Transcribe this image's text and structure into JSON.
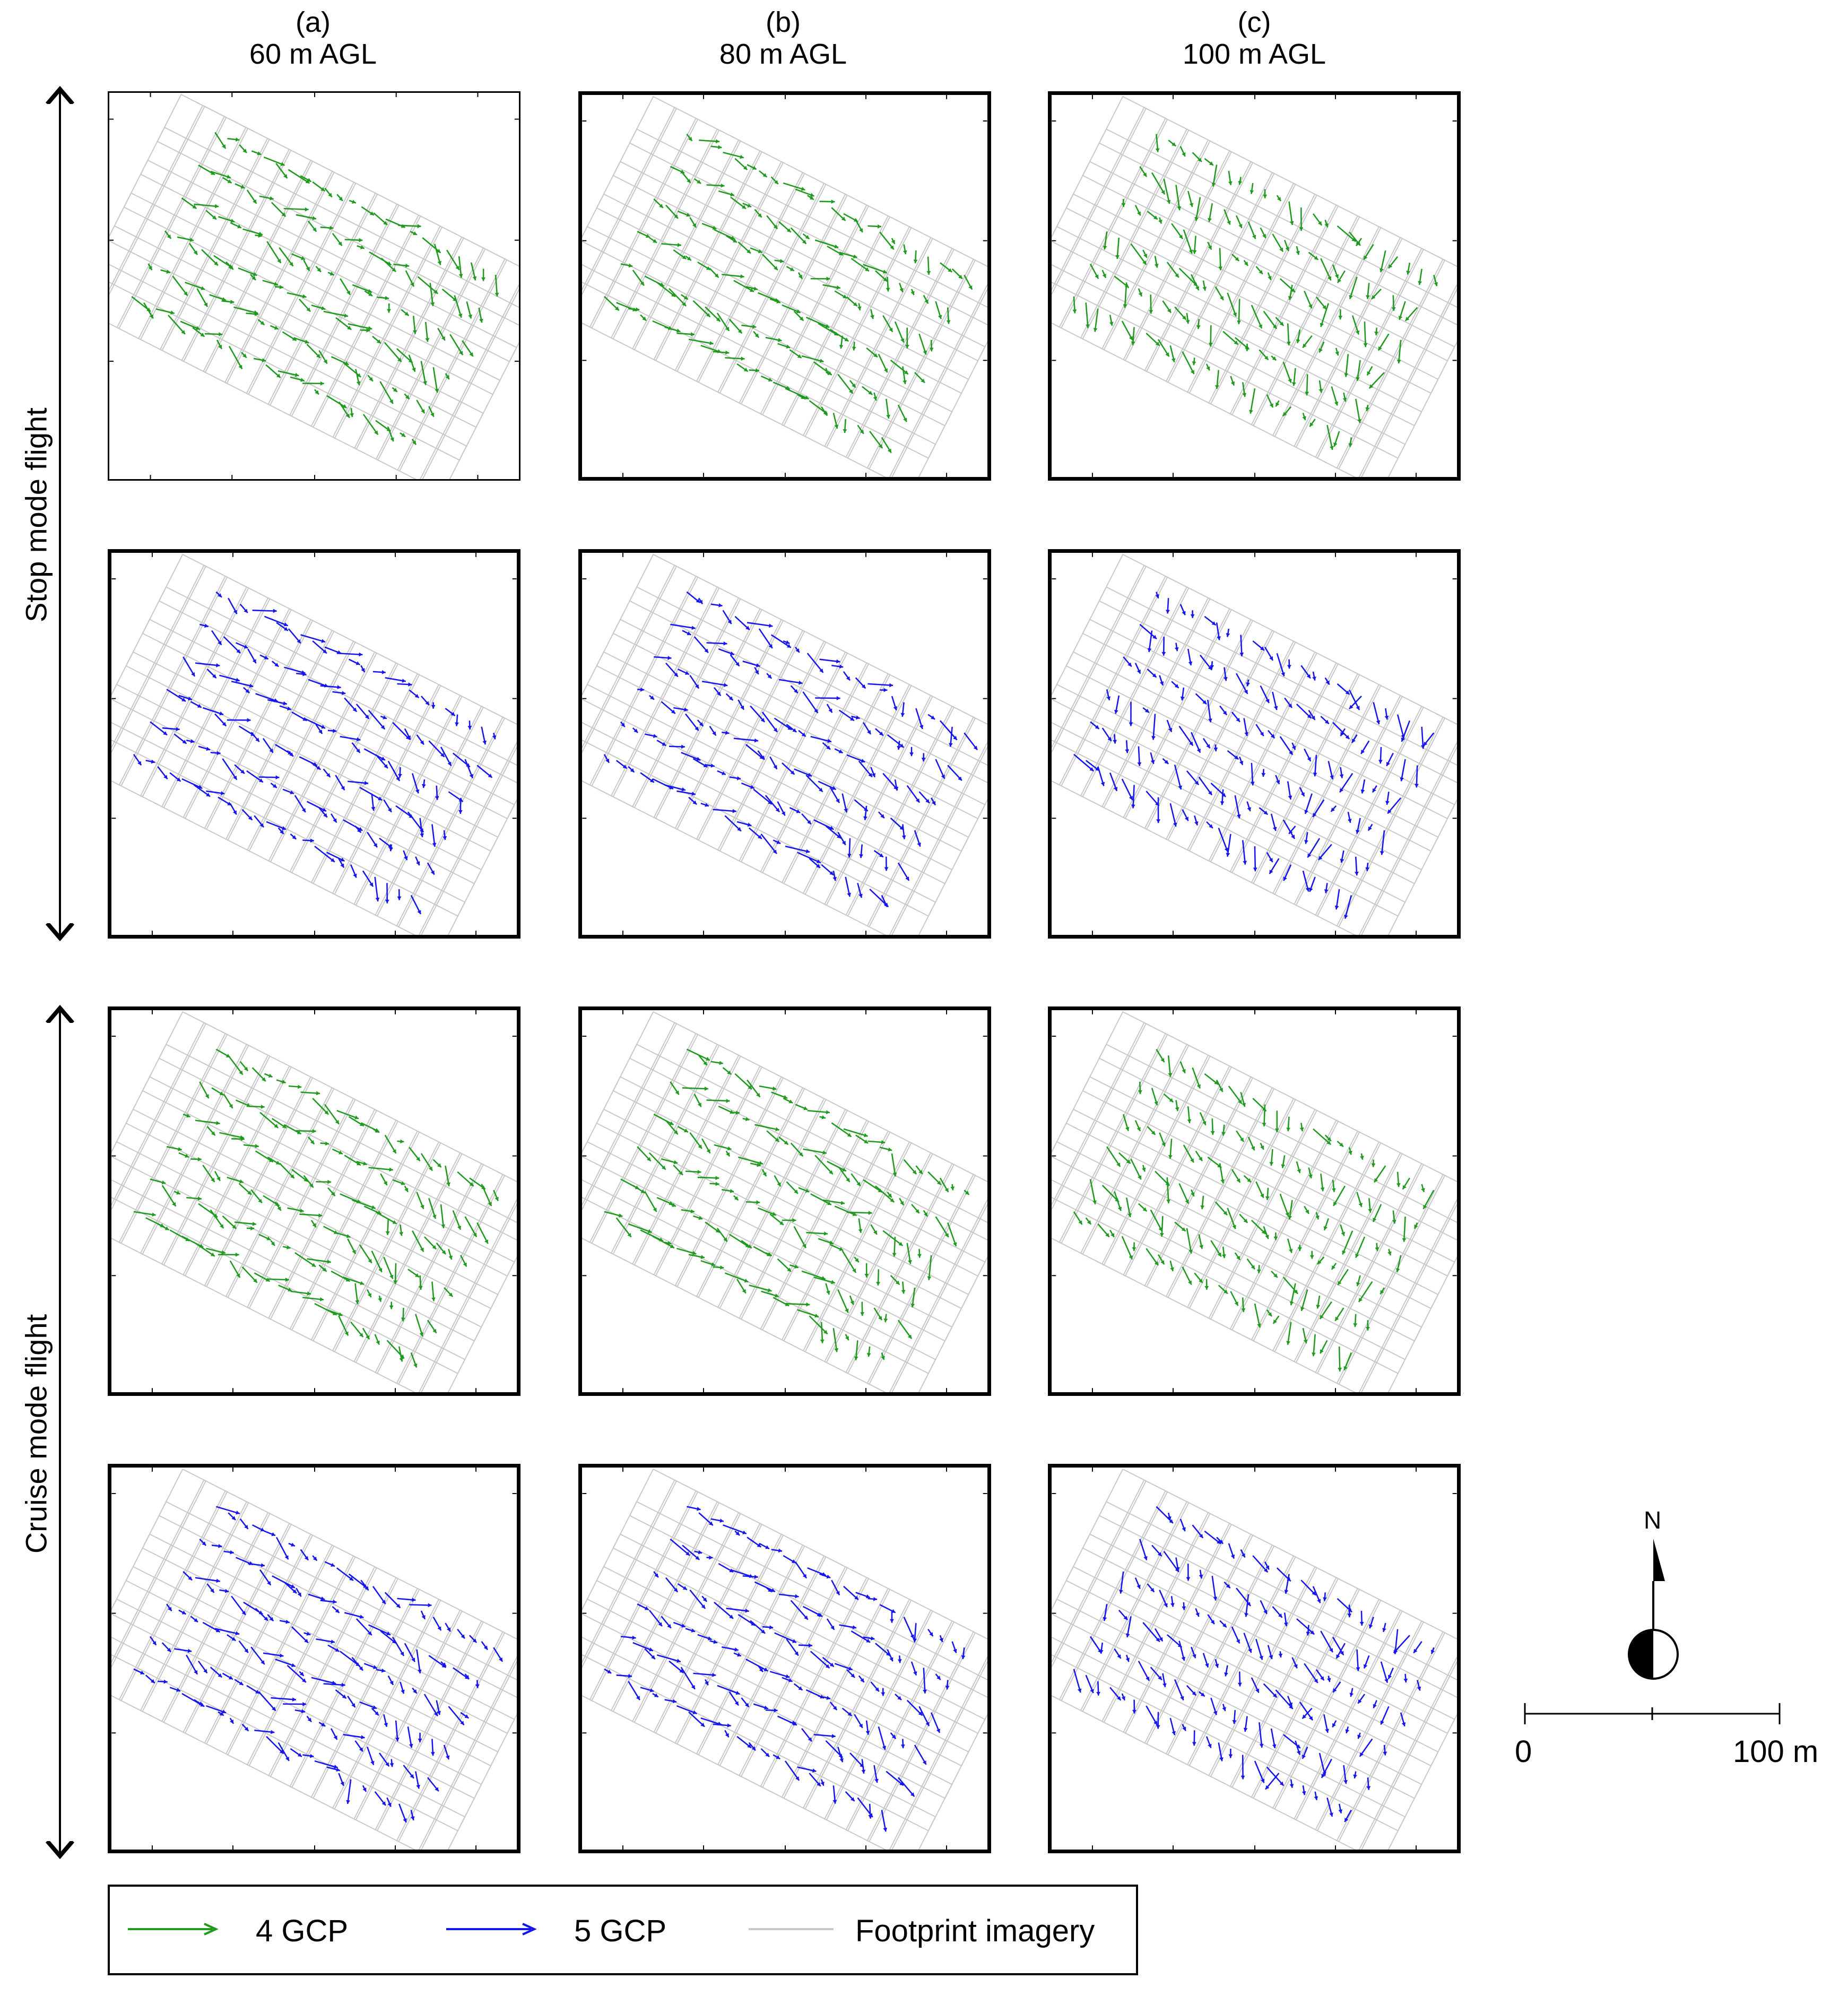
{
  "columns": [
    {
      "letter": "(a)",
      "height": "60 m AGL"
    },
    {
      "letter": "(b)",
      "height": "80 m AGL"
    },
    {
      "letter": "(c)",
      "height": "100 m AGL"
    }
  ],
  "row_groups": [
    {
      "label": "Stop mode flight"
    },
    {
      "label": "Cruise mode flight"
    }
  ],
  "legend": {
    "gcp4": "4 GCP",
    "gcp5": "5 GCP",
    "footprint": "Footprint imagery"
  },
  "colors": {
    "gcp4": "#1f9a1f",
    "gcp5": "#1515f0",
    "footprint": "#c8c8c8"
  },
  "north_arrow": {
    "label": "N"
  },
  "scale_bar": {
    "start_label": "0",
    "end_label": "100 m"
  },
  "chart_data": [
    {
      "type": "quiver",
      "row": "Stop mode flight",
      "series": "4 GCP",
      "column": "60 m AGL"
    },
    {
      "type": "quiver",
      "row": "Stop mode flight",
      "series": "4 GCP",
      "column": "80 m AGL"
    },
    {
      "type": "quiver",
      "row": "Stop mode flight",
      "series": "4 GCP",
      "column": "100 m AGL"
    },
    {
      "type": "quiver",
      "row": "Stop mode flight",
      "series": "5 GCP",
      "column": "60 m AGL"
    },
    {
      "type": "quiver",
      "row": "Stop mode flight",
      "series": "5 GCP",
      "column": "80 m AGL"
    },
    {
      "type": "quiver",
      "row": "Stop mode flight",
      "series": "5 GCP",
      "column": "100 m AGL"
    },
    {
      "type": "quiver",
      "row": "Cruise mode flight",
      "series": "4 GCP",
      "column": "60 m AGL"
    },
    {
      "type": "quiver",
      "row": "Cruise mode flight",
      "series": "4 GCP",
      "column": "80 m AGL"
    },
    {
      "type": "quiver",
      "row": "Cruise mode flight",
      "series": "4 GCP",
      "column": "100 m AGL"
    },
    {
      "type": "quiver",
      "row": "Cruise mode flight",
      "series": "5 GCP",
      "column": "60 m AGL"
    },
    {
      "type": "quiver",
      "row": "Cruise mode flight",
      "series": "5 GCP",
      "column": "80 m AGL"
    },
    {
      "type": "quiver",
      "row": "Cruise mode flight",
      "series": "5 GCP",
      "column": "100 m AGL"
    }
  ]
}
